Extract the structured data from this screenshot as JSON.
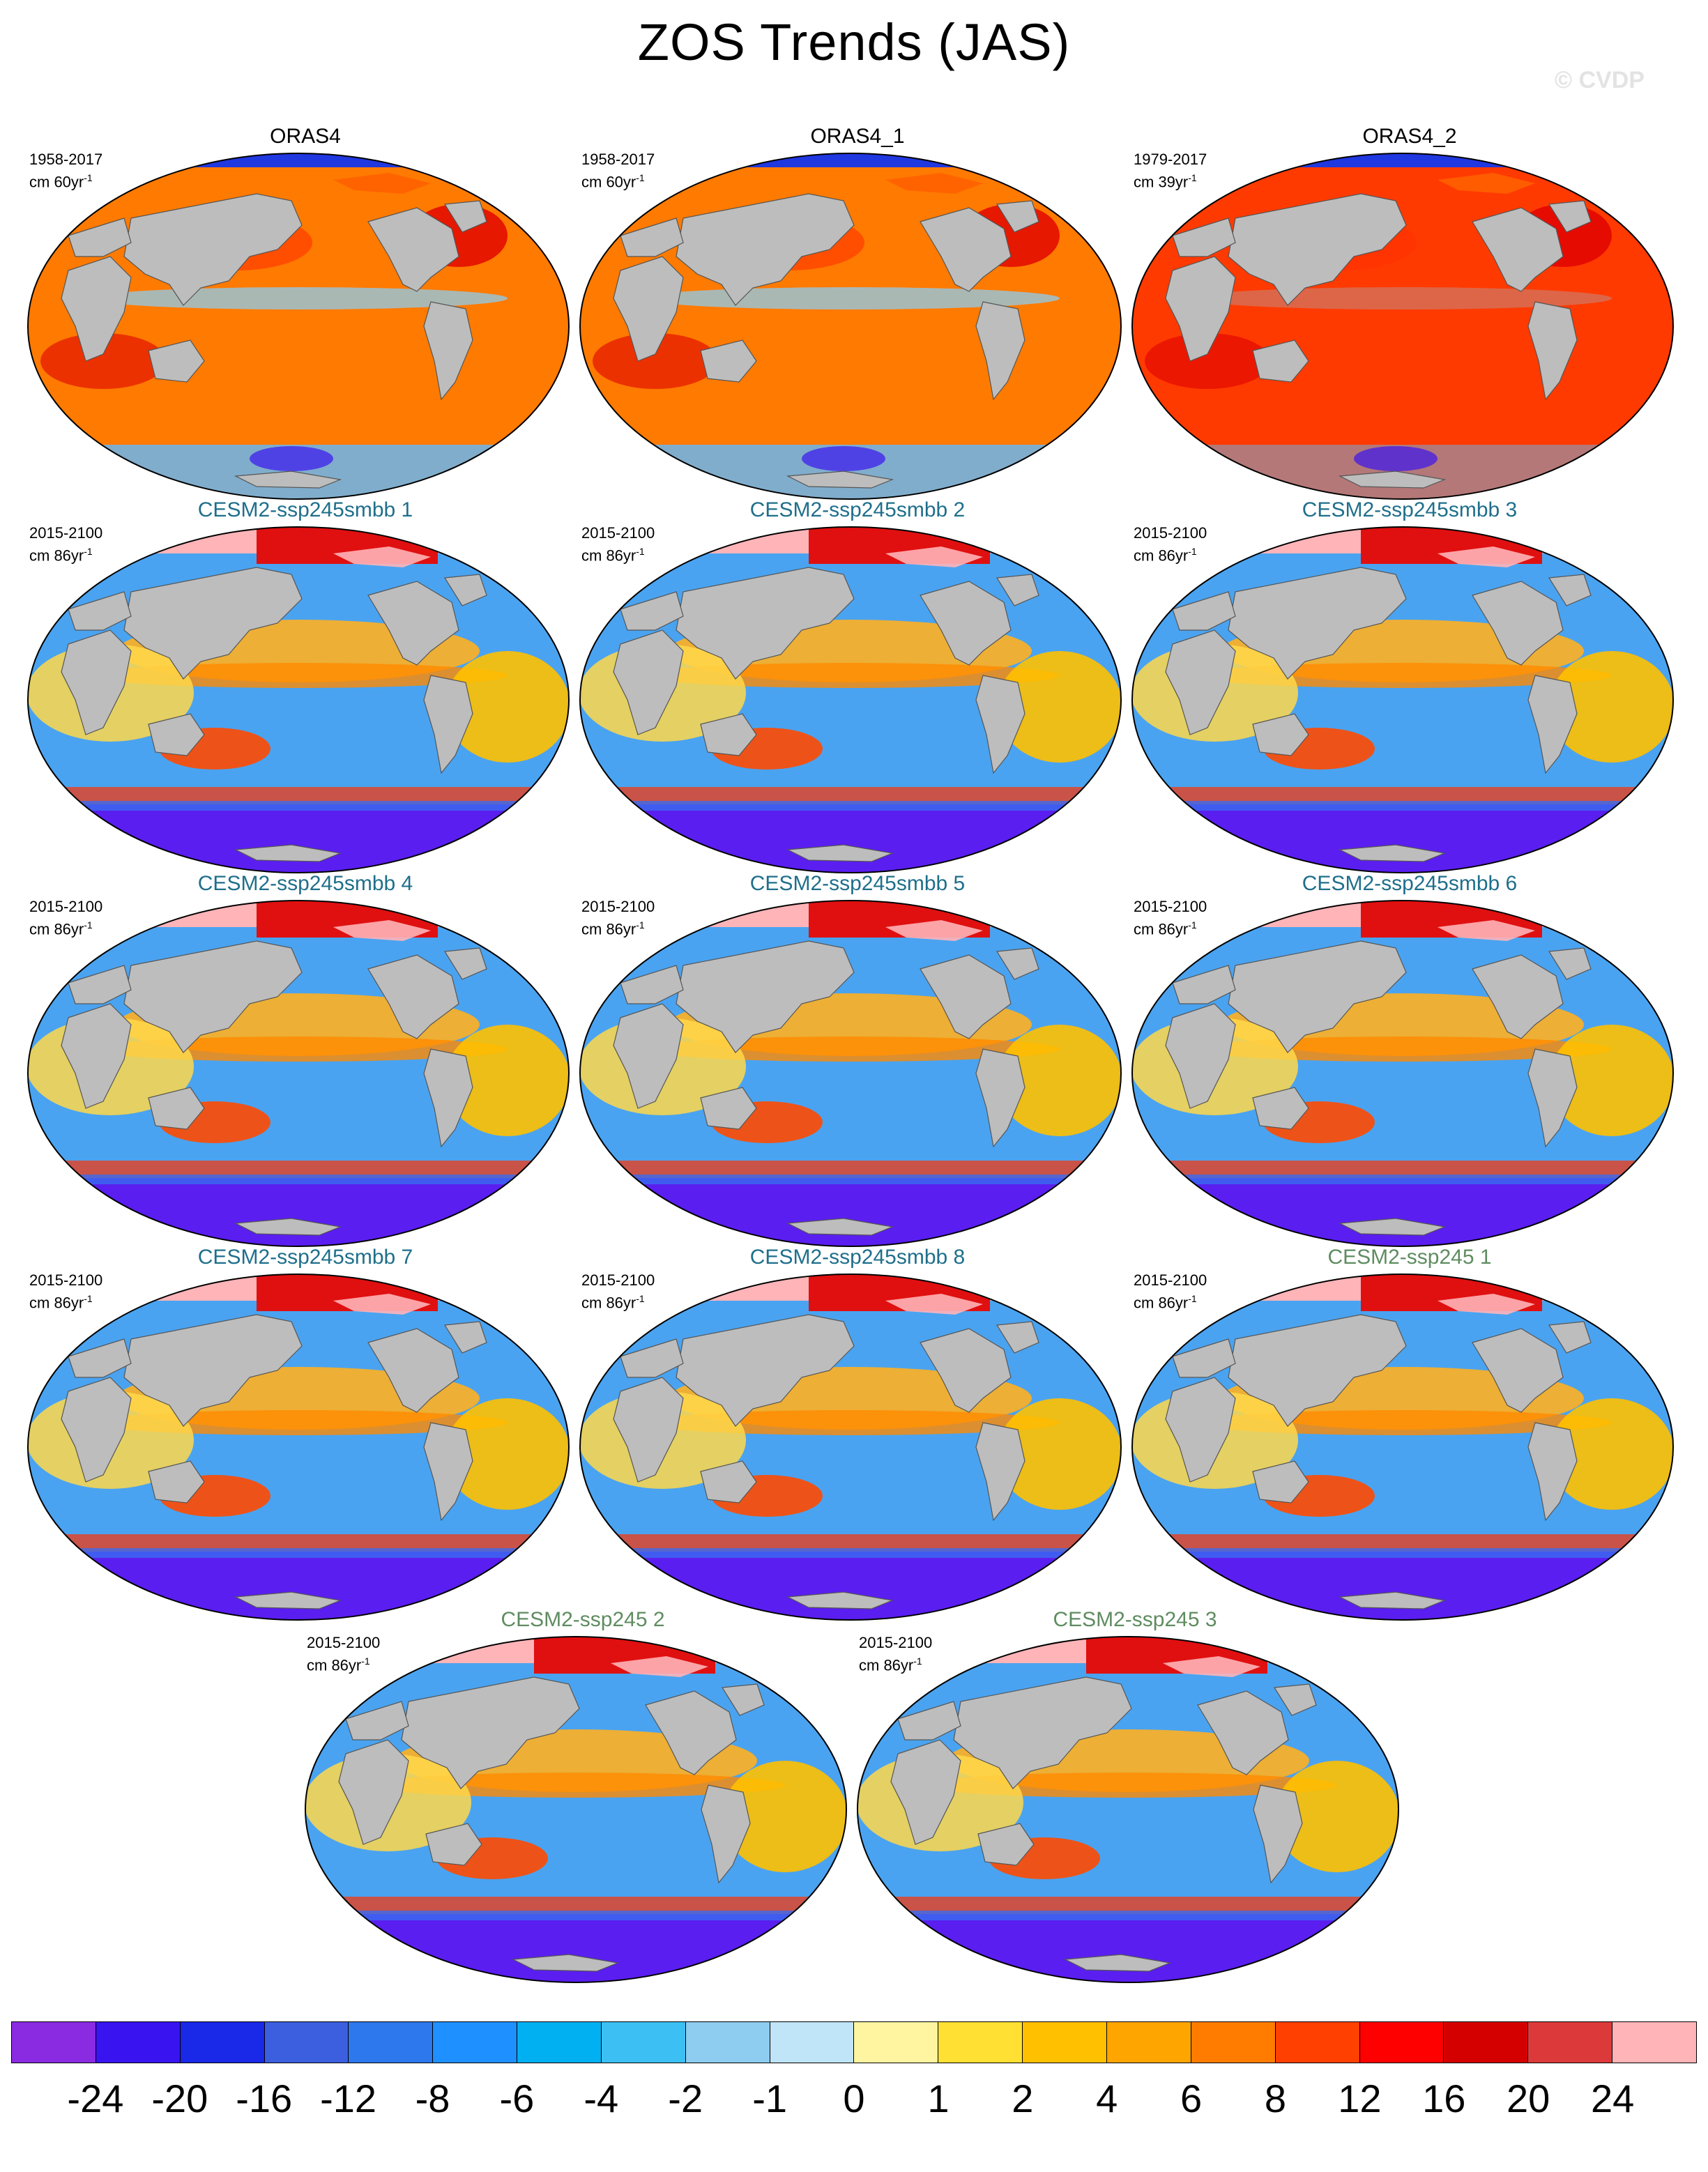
{
  "title": "ZOS Trends (JAS)",
  "watermark": "© CVDP",
  "panels": [
    {
      "title": "ORAS4",
      "group": "obs",
      "period": "1958-2017",
      "units_prefix": "cm 60yr",
      "units_exp": "-1",
      "palette": "warm"
    },
    {
      "title": "ORAS4_1",
      "group": "obs",
      "period": "1958-2017",
      "units_prefix": "cm 60yr",
      "units_exp": "-1",
      "palette": "warm"
    },
    {
      "title": "ORAS4_2",
      "group": "obs",
      "period": "1979-2017",
      "units_prefix": "cm 39yr",
      "units_exp": "-1",
      "palette": "hot"
    },
    {
      "title": "CESM2-ssp245smbb 1",
      "group": "smbb",
      "period": "2015-2100",
      "units_prefix": "cm 86yr",
      "units_exp": "-1",
      "palette": "model"
    },
    {
      "title": "CESM2-ssp245smbb 2",
      "group": "smbb",
      "period": "2015-2100",
      "units_prefix": "cm 86yr",
      "units_exp": "-1",
      "palette": "model"
    },
    {
      "title": "CESM2-ssp245smbb 3",
      "group": "smbb",
      "period": "2015-2100",
      "units_prefix": "cm 86yr",
      "units_exp": "-1",
      "palette": "model"
    },
    {
      "title": "CESM2-ssp245smbb 4",
      "group": "smbb",
      "period": "2015-2100",
      "units_prefix": "cm 86yr",
      "units_exp": "-1",
      "palette": "model"
    },
    {
      "title": "CESM2-ssp245smbb 5",
      "group": "smbb",
      "period": "2015-2100",
      "units_prefix": "cm 86yr",
      "units_exp": "-1",
      "palette": "model"
    },
    {
      "title": "CESM2-ssp245smbb 6",
      "group": "smbb",
      "period": "2015-2100",
      "units_prefix": "cm 86yr",
      "units_exp": "-1",
      "palette": "model"
    },
    {
      "title": "CESM2-ssp245smbb 7",
      "group": "smbb",
      "period": "2015-2100",
      "units_prefix": "cm 86yr",
      "units_exp": "-1",
      "palette": "model"
    },
    {
      "title": "CESM2-ssp245smbb 8",
      "group": "smbb",
      "period": "2015-2100",
      "units_prefix": "cm 86yr",
      "units_exp": "-1",
      "palette": "model"
    },
    {
      "title": "CESM2-ssp245 1",
      "group": "ssp",
      "period": "2015-2100",
      "units_prefix": "cm 86yr",
      "units_exp": "-1",
      "palette": "model"
    },
    {
      "title": "CESM2-ssp245 2",
      "group": "ssp",
      "period": "2015-2100",
      "units_prefix": "cm 86yr",
      "units_exp": "-1",
      "palette": "model"
    },
    {
      "title": "CESM2-ssp245 3",
      "group": "ssp",
      "period": "2015-2100",
      "units_prefix": "cm 86yr",
      "units_exp": "-1",
      "palette": "model"
    }
  ],
  "colorbar": {
    "colors": [
      "#8a2be2",
      "#3a14f0",
      "#1a28e8",
      "#3c5fe0",
      "#2e78ee",
      "#1e90ff",
      "#00b0f0",
      "#3cc0f4",
      "#8ecdf0",
      "#c0e4f8",
      "#fff5a0",
      "#ffe033",
      "#ffc000",
      "#ffa500",
      "#ff7c00",
      "#ff4000",
      "#ff0000",
      "#d40000",
      "#dc3a3a",
      "#ffb4b8"
    ],
    "labels": [
      "-24",
      "-20",
      "-16",
      "-12",
      "-8",
      "-6",
      "-4",
      "-2",
      "-1",
      "0",
      "1",
      "2",
      "4",
      "6",
      "8",
      "12",
      "16",
      "20",
      "24"
    ]
  },
  "colors": {
    "land": "#bdbdbd",
    "ocean_warm": "#ff7a00",
    "ocean_hot": "#ff3a00",
    "arctic_pink": "#ffb4b8",
    "southern_purple": "#5a1ef0",
    "obs_title": "#000000",
    "smbb_title": "#1f6f8b",
    "ssp_title": "#5f8c60"
  }
}
